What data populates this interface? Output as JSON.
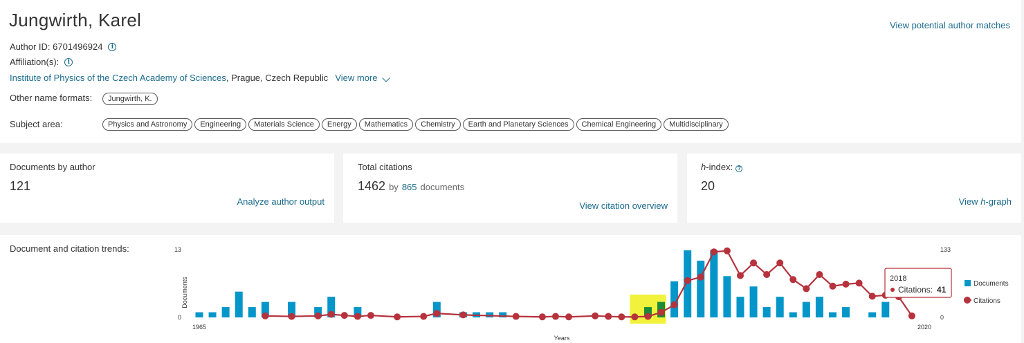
{
  "author": {
    "name": "Jungwirth, Karel",
    "potential_matches": "View potential author matches",
    "author_id_label": "Author ID: 6701496924",
    "affiliation_label": "Affiliation(s):",
    "affiliation_link": "Institute of Physics of the Czech Academy of Sciences",
    "affiliation_rest": ", Prague, Czech Republic",
    "view_more": "View more",
    "other_names_label": "Other name formats:",
    "other_names": [
      "Jungwirth, K."
    ],
    "subject_label": "Subject area:",
    "subjects": [
      "Physics and Astronomy",
      "Engineering",
      "Materials Science",
      "Energy",
      "Mathematics",
      "Chemistry",
      "Earth and Planetary Sciences",
      "Chemical Engineering",
      "Multidisciplinary"
    ]
  },
  "metrics": {
    "documents": {
      "title": "Documents by author",
      "value": "121",
      "action": "Analyze author output"
    },
    "citations": {
      "title": "Total citations",
      "value": "1462",
      "by": "by",
      "docs_count": "865",
      "docs_word": "documents",
      "action": "View citation overview"
    },
    "hindex": {
      "title_h": "h",
      "title_rest": "-index:",
      "value": "20",
      "action_pre": "View ",
      "action_h": "h",
      "action_post": "-graph"
    }
  },
  "trends": {
    "label": "Document and citation trends:"
  },
  "chart_data": {
    "type": "bar",
    "xlabel": "Years",
    "ylabel_left": "Documents",
    "y_left_lim": [
      0,
      13
    ],
    "y_right_lim": [
      0,
      133
    ],
    "x_tick_labels": [
      "1965",
      "2020"
    ],
    "x_range": [
      1965,
      2020
    ],
    "legend": [
      "Documents",
      "Citations"
    ],
    "legend_position": "right",
    "highlight_years": [
      1998,
      1999,
      2000
    ],
    "tooltip": {
      "year": "2018",
      "label": "Citations:",
      "value": "41"
    },
    "colors": {
      "documents": "#0596c9",
      "citations": "#b6323c",
      "highlight_bg": "#f2f23d",
      "highlight_bar": "#1d8a3a"
    },
    "documents": [
      {
        "year": 1965,
        "value": 1
      },
      {
        "year": 1966,
        "value": 1
      },
      {
        "year": 1967,
        "value": 2
      },
      {
        "year": 1968,
        "value": 5
      },
      {
        "year": 1969,
        "value": 2
      },
      {
        "year": 1970,
        "value": 3
      },
      {
        "year": 1972,
        "value": 3
      },
      {
        "year": 1974,
        "value": 2
      },
      {
        "year": 1975,
        "value": 4
      },
      {
        "year": 1977,
        "value": 2
      },
      {
        "year": 1983,
        "value": 3
      },
      {
        "year": 1985,
        "value": 1
      },
      {
        "year": 1986,
        "value": 1
      },
      {
        "year": 1987,
        "value": 1
      },
      {
        "year": 1988,
        "value": 1
      },
      {
        "year": 1999,
        "value": 2
      },
      {
        "year": 2000,
        "value": 3
      },
      {
        "year": 2001,
        "value": 7
      },
      {
        "year": 2002,
        "value": 13
      },
      {
        "year": 2003,
        "value": 11
      },
      {
        "year": 2004,
        "value": 13
      },
      {
        "year": 2005,
        "value": 8
      },
      {
        "year": 2006,
        "value": 4
      },
      {
        "year": 2007,
        "value": 6
      },
      {
        "year": 2008,
        "value": 2
      },
      {
        "year": 2009,
        "value": 4
      },
      {
        "year": 2010,
        "value": 1
      },
      {
        "year": 2011,
        "value": 3
      },
      {
        "year": 2012,
        "value": 4
      },
      {
        "year": 2013,
        "value": 1
      },
      {
        "year": 2014,
        "value": 2
      },
      {
        "year": 2016,
        "value": 1
      },
      {
        "year": 2017,
        "value": 3
      }
    ],
    "citations": [
      {
        "year": 1970,
        "value": 3
      },
      {
        "year": 1972,
        "value": 2
      },
      {
        "year": 1974,
        "value": 3
      },
      {
        "year": 1975,
        "value": 6
      },
      {
        "year": 1976,
        "value": 4
      },
      {
        "year": 1977,
        "value": 2
      },
      {
        "year": 1978,
        "value": 4
      },
      {
        "year": 1980,
        "value": 1
      },
      {
        "year": 1982,
        "value": 2
      },
      {
        "year": 1983,
        "value": 8
      },
      {
        "year": 1985,
        "value": 5
      },
      {
        "year": 1989,
        "value": 2
      },
      {
        "year": 1991,
        "value": 1
      },
      {
        "year": 1992,
        "value": 2
      },
      {
        "year": 1993,
        "value": 1
      },
      {
        "year": 1995,
        "value": 3
      },
      {
        "year": 1996,
        "value": 2
      },
      {
        "year": 1997,
        "value": 1
      },
      {
        "year": 1998,
        "value": 1
      },
      {
        "year": 1999,
        "value": 2
      },
      {
        "year": 2000,
        "value": 10
      },
      {
        "year": 2001,
        "value": 25
      },
      {
        "year": 2002,
        "value": 73
      },
      {
        "year": 2003,
        "value": 80
      },
      {
        "year": 2004,
        "value": 130
      },
      {
        "year": 2005,
        "value": 132
      },
      {
        "year": 2006,
        "value": 83
      },
      {
        "year": 2007,
        "value": 108
      },
      {
        "year": 2008,
        "value": 85
      },
      {
        "year": 2009,
        "value": 108
      },
      {
        "year": 2010,
        "value": 75
      },
      {
        "year": 2011,
        "value": 57
      },
      {
        "year": 2012,
        "value": 85
      },
      {
        "year": 2013,
        "value": 62
      },
      {
        "year": 2014,
        "value": 66
      },
      {
        "year": 2015,
        "value": 68
      },
      {
        "year": 2016,
        "value": 42
      },
      {
        "year": 2017,
        "value": 44
      },
      {
        "year": 2018,
        "value": 41
      },
      {
        "year": 2019,
        "value": 3
      }
    ]
  }
}
